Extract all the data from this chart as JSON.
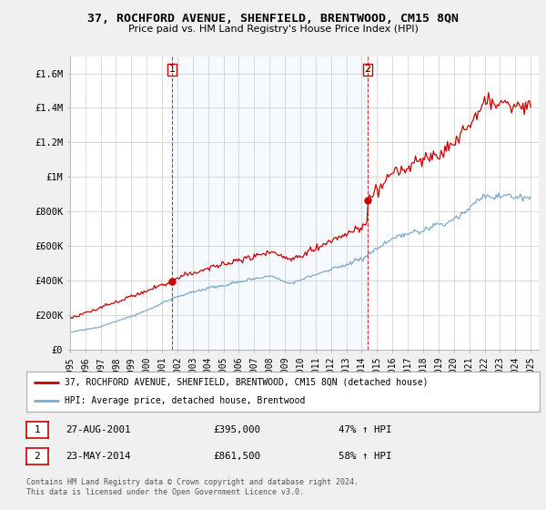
{
  "title": "37, ROCHFORD AVENUE, SHENFIELD, BRENTWOOD, CM15 8QN",
  "subtitle": "Price paid vs. HM Land Registry's House Price Index (HPI)",
  "ylabel_ticks": [
    "£0",
    "£200K",
    "£400K",
    "£600K",
    "£800K",
    "£1M",
    "£1.2M",
    "£1.4M",
    "£1.6M"
  ],
  "ylim": [
    0,
    1700000
  ],
  "xlim_start": 1995.0,
  "xlim_end": 2025.5,
  "sale1_x": 2001.65,
  "sale1_y": 395000,
  "sale2_x": 2014.39,
  "sale2_y": 861500,
  "vline1_x": 2001.65,
  "vline2_x": 2014.39,
  "legend_line1": "37, ROCHFORD AVENUE, SHENFIELD, BRENTWOOD, CM15 8QN (detached house)",
  "legend_line2": "HPI: Average price, detached house, Brentwood",
  "table_row1_num": "1",
  "table_row1_date": "27-AUG-2001",
  "table_row1_price": "£395,000",
  "table_row1_hpi": "47% ↑ HPI",
  "table_row2_num": "2",
  "table_row2_date": "23-MAY-2014",
  "table_row2_price": "£861,500",
  "table_row2_hpi": "58% ↑ HPI",
  "copyright": "Contains HM Land Registry data © Crown copyright and database right 2024.\nThis data is licensed under the Open Government Licence v3.0.",
  "line_color_red": "#cc0000",
  "line_color_blue": "#7aaad0",
  "shade_color": "#ddeeff",
  "bg_color": "#f0f0f0",
  "plot_bg_color": "#ffffff",
  "grid_color": "#cccccc",
  "vline_color": "#cc0000",
  "xtick_years": [
    1995,
    1996,
    1997,
    1998,
    1999,
    2000,
    2001,
    2002,
    2003,
    2004,
    2005,
    2006,
    2007,
    2008,
    2009,
    2010,
    2011,
    2012,
    2013,
    2014,
    2015,
    2016,
    2017,
    2018,
    2019,
    2020,
    2021,
    2022,
    2023,
    2024,
    2025
  ]
}
